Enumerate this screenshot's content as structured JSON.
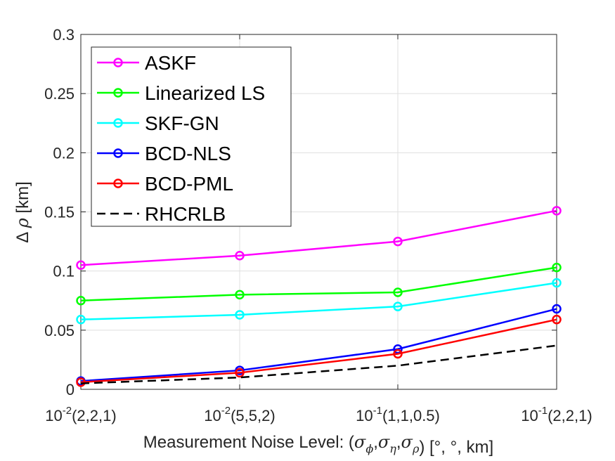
{
  "chart_data": {
    "type": "line",
    "title": "",
    "categories": [
      "10-2(2,2,1)",
      "10-2(5,5,2)",
      "10-1(1,1,0.5)",
      "10-1(2,2,1)"
    ],
    "x_tick_labels": [
      {
        "base": "10",
        "exp": "-2",
        "rest": "(2,2,1)"
      },
      {
        "base": "10",
        "exp": "-2",
        "rest": "(5,5,2)"
      },
      {
        "base": "10",
        "exp": "-1",
        "rest": "(1,1,0.5)"
      },
      {
        "base": "10",
        "exp": "-1",
        "rest": "(2,2,1)"
      }
    ],
    "xlabel": {
      "prefix": "Measurement Noise Level: (",
      "sigma": "σ",
      "subs": [
        "ϕ",
        "η",
        "ρ"
      ],
      "comma": ",",
      "suffix": ")  [°, °, km]"
    },
    "ylabel": {
      "delta": "Δ",
      "rho": "ρ",
      "unit": "[km]"
    },
    "ylim": [
      0,
      0.3
    ],
    "yticks": [
      0,
      0.05,
      0.1,
      0.15,
      0.2,
      0.25,
      0.3
    ],
    "ytick_labels": [
      "0",
      "0.05",
      "0.1",
      "0.15",
      "0.2",
      "0.25",
      "0.3"
    ],
    "grid": true,
    "legend_position": "top-left",
    "series": [
      {
        "name": "ASKF",
        "color": "#ff00ff",
        "marker": "circle",
        "dashed": false,
        "values": [
          0.105,
          0.113,
          0.125,
          0.151
        ]
      },
      {
        "name": "Linearized LS",
        "color": "#00ff00",
        "marker": "circle",
        "dashed": false,
        "values": [
          0.075,
          0.08,
          0.082,
          0.103
        ]
      },
      {
        "name": "SKF-GN",
        "color": "#00ffff",
        "marker": "circle",
        "dashed": false,
        "values": [
          0.059,
          0.063,
          0.07,
          0.09
        ]
      },
      {
        "name": "BCD-NLS",
        "color": "#0000ff",
        "marker": "circle",
        "dashed": false,
        "values": [
          0.007,
          0.016,
          0.034,
          0.068
        ]
      },
      {
        "name": "BCD-PML",
        "color": "#ff0000",
        "marker": "circle",
        "dashed": false,
        "values": [
          0.006,
          0.014,
          0.03,
          0.059
        ]
      },
      {
        "name": "RHCRLB",
        "color": "#000000",
        "marker": "none",
        "dashed": true,
        "values": [
          0.005,
          0.01,
          0.02,
          0.037
        ]
      }
    ]
  }
}
